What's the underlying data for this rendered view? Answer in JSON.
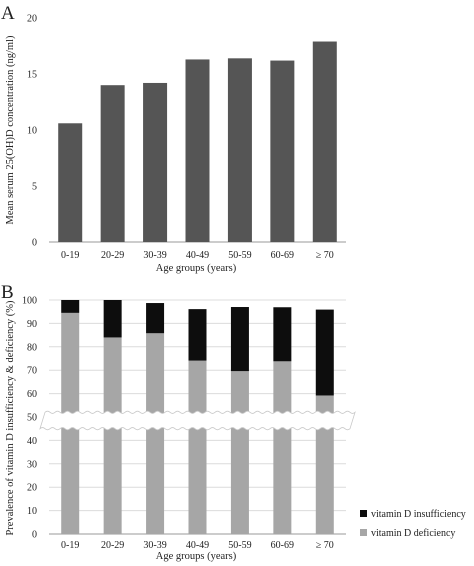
{
  "chart_data": [
    {
      "panel": "A",
      "type": "bar",
      "categories": [
        "0-19",
        "20-29",
        "30-39",
        "40-49",
        "50-59",
        "60-69",
        "≥ 70"
      ],
      "values": [
        10.6,
        14.0,
        14.2,
        16.3,
        16.4,
        16.2,
        17.9
      ],
      "xlabel": "Age groups (years)",
      "ylabel": "Mean serum 25(OH)D concentration (ng/ml)",
      "ylim": [
        0,
        20
      ],
      "yticks": [
        0,
        5,
        10,
        15,
        20
      ],
      "grid": false,
      "bar_color": "#555555"
    },
    {
      "panel": "B",
      "type": "bar",
      "stacked": true,
      "axis_break": [
        52,
        45
      ],
      "categories": [
        "0-19",
        "20-29",
        "30-39",
        "40-49",
        "50-59",
        "60-69",
        "≥ 70"
      ],
      "series": [
        {
          "name": "vitamin D deficiency",
          "values": [
            94.5,
            84.0,
            85.8,
            74.1,
            69.6,
            73.8,
            59.2
          ],
          "color": "#a6a6a6"
        },
        {
          "name": "vitamin D insufficiency",
          "values": [
            5.5,
            16.0,
            12.9,
            22.0,
            27.4,
            23.1,
            36.7
          ],
          "color": "#0d0d0d"
        }
      ],
      "xlabel": "Age groups (years)",
      "ylabel": "Prevalence of vitamin D insufficiency & deficiency (%)",
      "ylim": [
        0,
        100
      ],
      "yticks": [
        0,
        10,
        20,
        30,
        40,
        50,
        60,
        70,
        80,
        90,
        100
      ],
      "grid": true,
      "legend_position": "bottom-right"
    }
  ]
}
